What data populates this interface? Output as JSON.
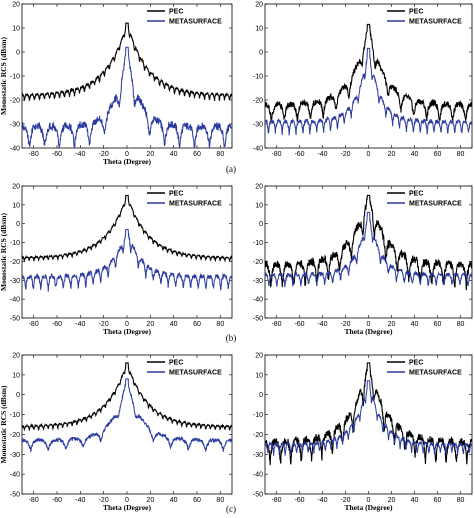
{
  "chart_data": [
    {
      "type": "line",
      "row": 0,
      "col": 0,
      "xlabel": "Theta (Degree)",
      "ylabel": "Monostatic RCS (dBsm)",
      "xlim": [
        -90,
        90
      ],
      "ylim": [
        -40,
        20
      ],
      "xticks": [
        -80,
        -60,
        -40,
        -20,
        0,
        20,
        40,
        60,
        80
      ],
      "yticks": [
        -40,
        -30,
        -20,
        -10,
        0,
        10,
        20
      ],
      "legend": "top-right",
      "series": [
        {
          "name": "PEC",
          "color": "#000000",
          "peak": 12,
          "floor": -18,
          "lobes": 42,
          "lobe_depth": 2.5,
          "spread": 18
        },
        {
          "name": "METASURFACE",
          "color": "#2b3a9e",
          "peak": 2,
          "floor": -31,
          "lobes": 14,
          "lobe_depth": 9,
          "spread": 10
        }
      ]
    },
    {
      "type": "line",
      "row": 0,
      "col": 1,
      "xlabel": "",
      "ylabel": "",
      "xlim": [
        -90,
        90
      ],
      "ylim": [
        -40,
        20
      ],
      "xticks": [
        -80,
        -60,
        -40,
        -20,
        0,
        20,
        40,
        60,
        80
      ],
      "yticks": [
        -40,
        -30,
        -20,
        -10,
        0,
        10,
        20
      ],
      "legend": "top-right",
      "series": [
        {
          "name": "PEC",
          "color": "#000000",
          "peak": 11.5,
          "floor": -22,
          "lobes": 16,
          "lobe_depth": 7,
          "spread": 14
        },
        {
          "name": "METASURFACE",
          "color": "#2b3a9e",
          "peak": 1.5,
          "floor": -29,
          "lobes": 30,
          "lobe_depth": 5,
          "spread": 10
        }
      ]
    },
    {
      "type": "line",
      "row": 1,
      "col": 0,
      "xlabel": "Theta (Degree)",
      "ylabel": "Monostatic RCS (dBsm)",
      "xlim": [
        -90,
        90
      ],
      "ylim": [
        -50,
        20
      ],
      "xticks": [
        -80,
        -60,
        -40,
        -20,
        0,
        20,
        40,
        60,
        80
      ],
      "yticks": [
        -50,
        -40,
        -30,
        -20,
        -10,
        0,
        10,
        20
      ],
      "legend": "top-right",
      "series": [
        {
          "name": "PEC",
          "color": "#000000",
          "peak": 15,
          "floor": -18,
          "lobes": 44,
          "lobe_depth": 2,
          "spread": 18
        },
        {
          "name": "METASURFACE",
          "color": "#2b3a9e",
          "peak": -3,
          "floor": -28,
          "lobes": 28,
          "lobe_depth": 7,
          "spread": 12
        }
      ]
    },
    {
      "type": "line",
      "row": 1,
      "col": 1,
      "xlabel": "Theta (Degree)",
      "ylabel": "",
      "xlim": [
        -90,
        90
      ],
      "ylim": [
        -50,
        20
      ],
      "xticks": [
        -80,
        -60,
        -40,
        -20,
        0,
        20,
        40,
        60,
        80
      ],
      "yticks": [
        -50,
        -40,
        -30,
        -20,
        -10,
        0,
        10,
        20
      ],
      "legend": "top-right",
      "series": [
        {
          "name": "PEC",
          "color": "#000000",
          "peak": 15,
          "floor": -22,
          "lobes": 18,
          "lobe_depth": 12,
          "spread": 16
        },
        {
          "name": "METASURFACE",
          "color": "#2b3a9e",
          "peak": 6,
          "floor": -27,
          "lobes": 26,
          "lobe_depth": 6,
          "spread": 10
        }
      ]
    },
    {
      "type": "line",
      "row": 2,
      "col": 0,
      "xlabel": "Theta (Degree)",
      "ylabel": "Monostatic RCS (dBsm)",
      "xlim": [
        -90,
        90
      ],
      "ylim": [
        -50,
        20
      ],
      "xticks": [
        -80,
        -60,
        -40,
        -20,
        0,
        20,
        40,
        60,
        80
      ],
      "yticks": [
        -50,
        -40,
        -30,
        -20,
        -10,
        0,
        10,
        20
      ],
      "legend": "top-right",
      "series": [
        {
          "name": "PEC",
          "color": "#000000",
          "peak": 16,
          "floor": -16,
          "lobes": 44,
          "lobe_depth": 2,
          "spread": 18
        },
        {
          "name": "METASURFACE",
          "color": "#2b3a9e",
          "peak": 8,
          "floor": -23,
          "lobes": 12,
          "lobe_depth": 5,
          "spread": 12
        }
      ]
    },
    {
      "type": "line",
      "row": 2,
      "col": 1,
      "xlabel": "Theta (Degree)",
      "ylabel": "",
      "xlim": [
        -90,
        90
      ],
      "ylim": [
        -50,
        20
      ],
      "xticks": [
        -80,
        -60,
        -40,
        -20,
        0,
        20,
        40,
        60,
        80
      ],
      "yticks": [
        -50,
        -40,
        -30,
        -20,
        -10,
        0,
        10,
        20
      ],
      "legend": "top-right",
      "series": [
        {
          "name": "PEC",
          "color": "#000000",
          "peak": 16,
          "floor": -24,
          "lobes": 20,
          "lobe_depth": 11,
          "spread": 16
        },
        {
          "name": "METASURFACE",
          "color": "#2b3a9e",
          "peak": 7,
          "floor": -25,
          "lobes": 36,
          "lobe_depth": 5,
          "spread": 12
        }
      ]
    }
  ],
  "row_labels": [
    "(a)",
    "(b)",
    "(c)"
  ]
}
